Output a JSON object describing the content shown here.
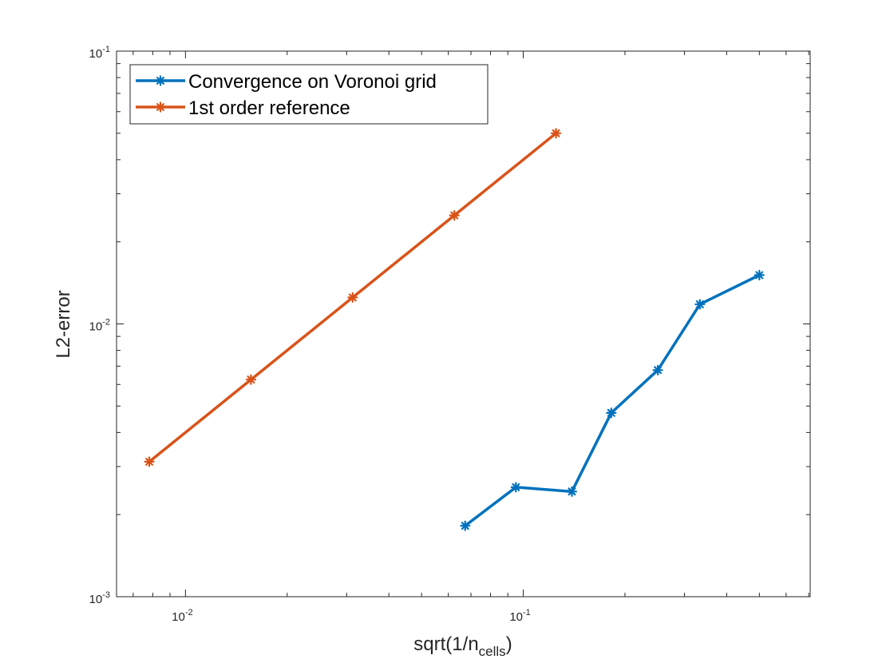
{
  "chart_data": {
    "type": "line",
    "xscale": "log",
    "yscale": "log",
    "xlim": [
      0.00625,
      0.707
    ],
    "ylim": [
      0.001,
      0.1
    ],
    "grid": false,
    "legend_placement": "top-left",
    "xlabel": {
      "main": "sqrt(1/n",
      "sub": "cells",
      "end": ")"
    },
    "ylabel": "L2-error",
    "x_ticks": [
      {
        "value": 0.01,
        "base": "10",
        "exp": "-2"
      },
      {
        "value": 0.1,
        "base": "10",
        "exp": "-1"
      }
    ],
    "y_ticks": [
      {
        "value": 0.001,
        "base": "10",
        "exp": "-3"
      },
      {
        "value": 0.01,
        "base": "10",
        "exp": "-2"
      },
      {
        "value": 0.1,
        "base": "10",
        "exp": "-1"
      }
    ],
    "series": [
      {
        "name": "Convergence on Voronoi grid",
        "color": "#0072BD",
        "marker": "asterisk",
        "x": [
          0.0673,
          0.0951,
          0.1393,
          0.1822,
          0.2502,
          0.3333,
          0.5
        ],
        "y": [
          0.00182,
          0.00252,
          0.00243,
          0.00472,
          0.00677,
          0.0118,
          0.0151
        ]
      },
      {
        "name": "1st order reference",
        "color": "#D95319",
        "marker": "asterisk",
        "x": [
          0.0078125,
          0.015625,
          0.03125,
          0.0625,
          0.125
        ],
        "y": [
          0.003125,
          0.00625,
          0.0125,
          0.025,
          0.05
        ]
      }
    ]
  }
}
